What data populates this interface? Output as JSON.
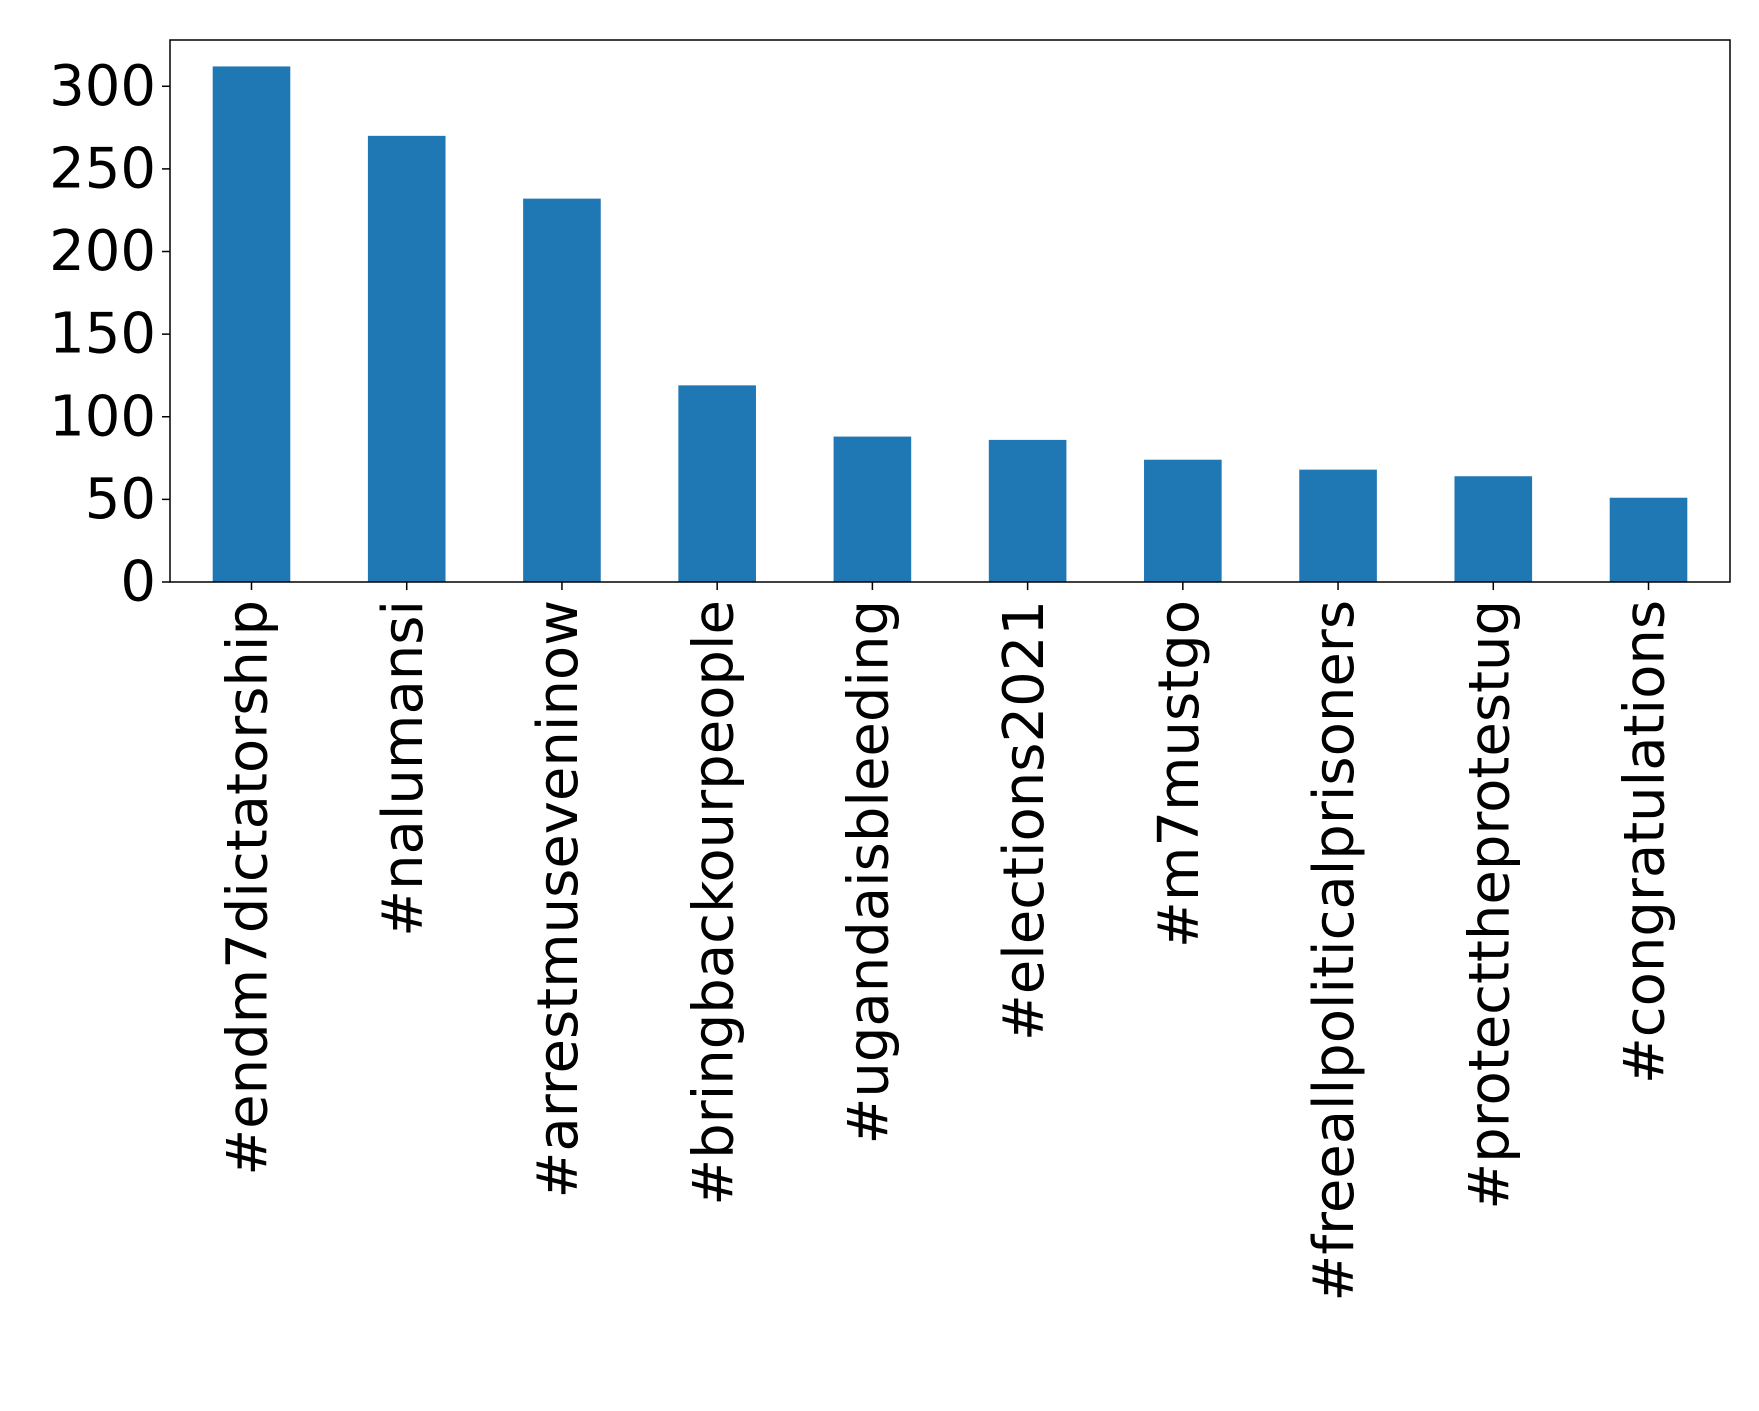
{
  "chart_data": {
    "type": "bar",
    "title": "",
    "xlabel": "",
    "ylabel": "",
    "categories": [
      "#endm7dictatorship",
      "#nalumansi",
      "#arrestmuseveninow",
      "#bringbackourpeople",
      "#ugandaisbleeding",
      "#elections2021",
      "#m7mustgo",
      "#freeallpoliticalprisoners",
      "#protecttheprotestug",
      "#congratulations"
    ],
    "values": [
      312,
      270,
      232,
      119,
      88,
      86,
      74,
      68,
      64,
      51
    ],
    "ylim": [
      0,
      328
    ],
    "yticks": [
      "0",
      "50",
      "100",
      "150",
      "200",
      "250",
      "300"
    ],
    "bar_color": "#1f77b4",
    "grid": false,
    "legend": "none"
  }
}
